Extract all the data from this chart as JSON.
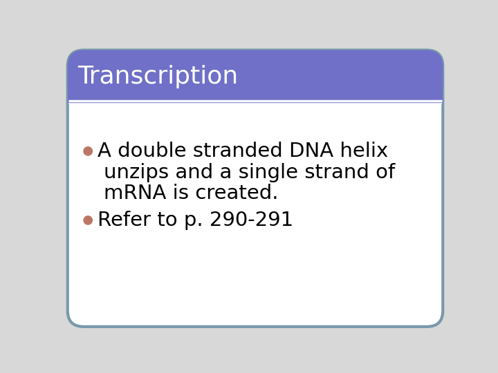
{
  "title": "Transcription",
  "title_bg_color": "#7070C8",
  "title_text_color": "#FFFFFF",
  "title_fontsize": 26,
  "body_bg_color": "#FFFFFF",
  "outer_bg_color": "#E8E8E8",
  "border_color": "#7799AA",
  "bullet_color": "#BB7766",
  "bullet1_line1": "A double stranded DNA helix",
  "bullet1_line2": "unzips and a single strand of",
  "bullet1_line3": "mRNA is created.",
  "bullet2": "Refer to p. 290-291",
  "body_fontsize": 21,
  "title_bar_height": 100,
  "separator_color": "#FFFFFF",
  "fig_bg_color": "#D8D8D8"
}
